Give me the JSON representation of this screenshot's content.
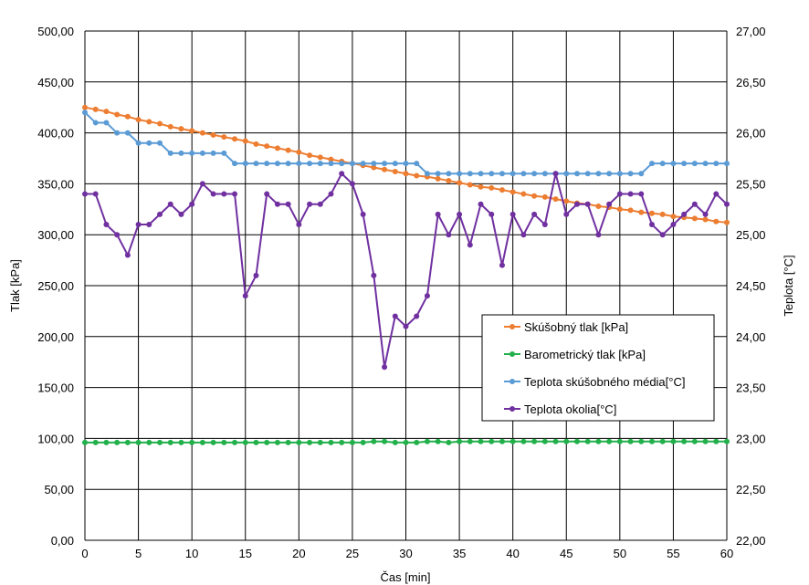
{
  "chart_data": {
    "type": "line",
    "xlabel": "Čas [min]",
    "ylabel_left": "Tlak [kPa]",
    "ylabel_right": "Teplota [°C]",
    "xlim": [
      0,
      60
    ],
    "x_ticks": [
      0,
      5,
      10,
      15,
      20,
      25,
      30,
      35,
      40,
      45,
      50,
      55,
      60
    ],
    "ylim_left": [
      0,
      500
    ],
    "y_ticks_left": [
      "0,00",
      "50,00",
      "100,00",
      "150,00",
      "200,00",
      "250,00",
      "300,00",
      "350,00",
      "400,00",
      "450,00",
      "500,00"
    ],
    "ylim_right": [
      22,
      27
    ],
    "y_ticks_right": [
      "22,00",
      "22,50",
      "23,00",
      "23,50",
      "24,00",
      "24,50",
      "25,00",
      "25,50",
      "26,00",
      "26,50",
      "27,00"
    ],
    "grid": true,
    "legend_position": "lower-right inside plot",
    "x": [
      0,
      1,
      2,
      3,
      4,
      5,
      6,
      7,
      8,
      9,
      10,
      11,
      12,
      13,
      14,
      15,
      16,
      17,
      18,
      19,
      20,
      21,
      22,
      23,
      24,
      25,
      26,
      27,
      28,
      29,
      30,
      31,
      32,
      33,
      34,
      35,
      36,
      37,
      38,
      39,
      40,
      41,
      42,
      43,
      44,
      45,
      46,
      47,
      48,
      49,
      50,
      51,
      52,
      53,
      54,
      55,
      56,
      57,
      58,
      59,
      60
    ],
    "series": [
      {
        "name": "Skúšobný tlak [kPa]",
        "axis": "left",
        "color": "#ED7D31",
        "values": [
          425,
          423,
          421,
          418,
          416,
          413,
          411,
          409,
          406,
          404,
          402,
          400,
          398,
          396,
          394,
          392,
          389,
          387,
          385,
          383,
          381,
          378,
          376,
          374,
          372,
          370,
          368,
          366,
          364,
          362,
          360,
          358,
          357,
          355,
          353,
          351,
          349,
          347,
          346,
          344,
          342,
          340,
          338,
          337,
          335,
          333,
          331,
          330,
          328,
          327,
          325,
          324,
          322,
          321,
          320,
          318,
          317,
          316,
          315,
          313,
          312
        ]
      },
      {
        "name": "Barometrický tlak [kPa]",
        "axis": "left",
        "color": "#22B04B",
        "values": [
          96,
          96,
          96,
          96,
          96,
          96,
          96,
          96,
          96,
          96,
          96,
          96,
          96,
          96,
          96,
          96,
          96,
          96,
          96,
          96,
          96,
          96,
          96,
          96,
          96,
          96,
          96,
          97,
          97,
          96,
          96,
          96,
          97,
          97,
          96,
          97,
          97,
          97,
          97,
          97,
          97,
          97,
          97,
          97,
          97,
          97,
          97,
          97,
          97,
          97,
          97,
          97,
          97,
          97,
          97,
          97,
          97,
          97,
          97,
          97,
          97
        ]
      },
      {
        "name": "Teplota skúšobného média[°C]",
        "axis": "right",
        "color": "#5B9BD5",
        "values": [
          26.2,
          26.1,
          26.1,
          26.0,
          26.0,
          25.9,
          25.9,
          25.9,
          25.8,
          25.8,
          25.8,
          25.8,
          25.8,
          25.8,
          25.7,
          25.7,
          25.7,
          25.7,
          25.7,
          25.7,
          25.7,
          25.7,
          25.7,
          25.7,
          25.7,
          25.7,
          25.7,
          25.7,
          25.7,
          25.7,
          25.7,
          25.7,
          25.6,
          25.6,
          25.6,
          25.6,
          25.6,
          25.6,
          25.6,
          25.6,
          25.6,
          25.6,
          25.6,
          25.6,
          25.6,
          25.6,
          25.6,
          25.6,
          25.6,
          25.6,
          25.6,
          25.6,
          25.6,
          25.7,
          25.7,
          25.7,
          25.7,
          25.7,
          25.7,
          25.7,
          25.7
        ]
      },
      {
        "name": "Teplota okolia[°C]",
        "axis": "right",
        "color": "#7030A0",
        "values": [
          25.4,
          25.4,
          25.1,
          25.0,
          24.8,
          25.1,
          25.1,
          25.2,
          25.3,
          25.2,
          25.3,
          25.5,
          25.4,
          25.4,
          25.4,
          24.4,
          24.6,
          25.4,
          25.3,
          25.3,
          25.1,
          25.3,
          25.3,
          25.4,
          25.6,
          25.5,
          25.2,
          24.6,
          23.7,
          24.2,
          24.1,
          24.2,
          24.4,
          25.2,
          25.0,
          25.2,
          24.9,
          25.3,
          25.2,
          24.7,
          25.2,
          25.0,
          25.2,
          25.1,
          25.6,
          25.2,
          25.3,
          25.3,
          25.0,
          25.3,
          25.4,
          25.4,
          25.4,
          25.1,
          25.0,
          25.1,
          25.2,
          25.3,
          25.2,
          25.4,
          25.3
        ]
      }
    ]
  }
}
